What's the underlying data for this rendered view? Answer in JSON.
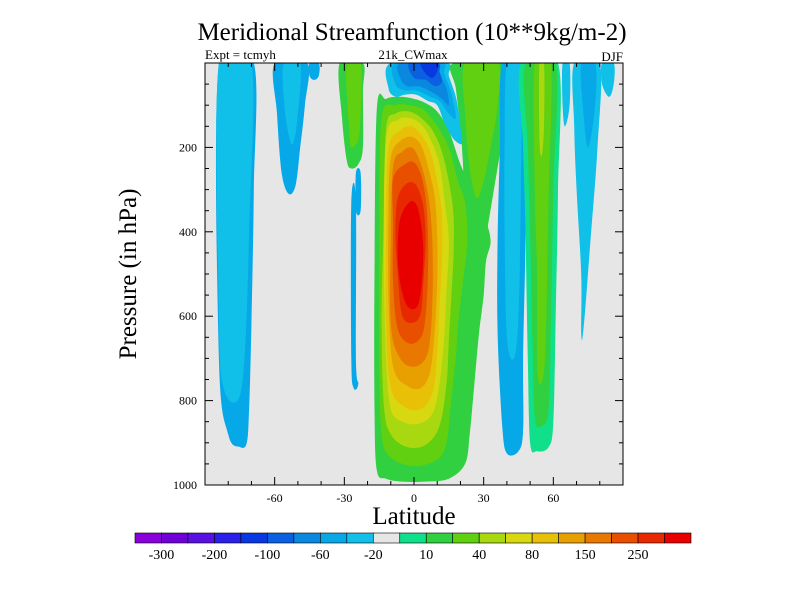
{
  "chart_data": {
    "type": "contour",
    "title": "Meridional Streamfunction (10**9kg/m-2)",
    "subtitle_left": "Expt = tcmyh",
    "subtitle_center": "21k_CWmax",
    "subtitle_right": "DJF",
    "xlabel": "Latitude",
    "ylabel": "Pressure (in hPa)",
    "xlim": [
      -90,
      90
    ],
    "ylim": [
      1000,
      0
    ],
    "x_ticks": [
      {
        "value": -60,
        "label": "-60"
      },
      {
        "value": -30,
        "label": "-30"
      },
      {
        "value": 0,
        "label": "0"
      },
      {
        "value": 30,
        "label": "30"
      },
      {
        "value": 60,
        "label": "60"
      }
    ],
    "y_ticks": [
      {
        "value": 200,
        "label": "200"
      },
      {
        "value": 400,
        "label": "400"
      },
      {
        "value": 600,
        "label": "600"
      },
      {
        "value": 800,
        "label": "800"
      },
      {
        "value": 1000,
        "label": "1000"
      }
    ],
    "levels": [
      -300,
      -250,
      -200,
      -150,
      -100,
      -80,
      -60,
      -40,
      -20,
      -10,
      10,
      20,
      40,
      60,
      80,
      100,
      150,
      200,
      250,
      300
    ],
    "colorbar_colors": [
      "#8a00d8",
      "#7000d8",
      "#5a10e0",
      "#2a20e8",
      "#0838e0",
      "#0a60e0",
      "#0a88e0",
      "#06a8e8",
      "#10c0e8",
      "#e6e6e6",
      "#10e08a",
      "#30d040",
      "#60d010",
      "#a8d810",
      "#d8d810",
      "#e8c008",
      "#e8a000",
      "#e87800",
      "#e85000",
      "#e82800",
      "#e80000"
    ],
    "colorbar_labels": [
      {
        "index": 1,
        "label": "-300"
      },
      {
        "index": 3,
        "label": "-200"
      },
      {
        "index": 5,
        "label": "-100"
      },
      {
        "index": 7,
        "label": "-60"
      },
      {
        "index": 9,
        "label": "-20"
      },
      {
        "index": 11,
        "label": "10"
      },
      {
        "index": 13,
        "label": "40"
      },
      {
        "index": 15,
        "label": "80"
      },
      {
        "index": 17,
        "label": "150"
      },
      {
        "index": 19,
        "label": "250"
      }
    ],
    "background_color": "#e6e6e6",
    "features": [
      {
        "name": "main-cell-positive",
        "lat_range": [
          -15,
          15
        ],
        "pressure_range": [
          90,
          990
        ],
        "peak_value": 300,
        "peak_lat": -2,
        "peak_pressure": 500
      },
      {
        "name": "north-positive-band",
        "lat_range": [
          5,
          45
        ],
        "pressure_range": [
          0,
          430
        ],
        "peak_value": 30
      },
      {
        "name": "nh-negative-upper",
        "lat_range": [
          -12,
          18
        ],
        "pressure_range": [
          0,
          80
        ],
        "peak_value": -150
      },
      {
        "name": "sh-negative-cell",
        "lat_range": [
          -84,
          -69
        ],
        "pressure_range": [
          0,
          910
        ],
        "peak_value": -20
      },
      {
        "name": "nh-negative-cell",
        "lat_range": [
          37,
          48
        ],
        "pressure_range": [
          0,
          930
        ],
        "peak_value": -20
      },
      {
        "name": "ferrel-positive-cell",
        "lat_range": [
          46,
          62
        ],
        "pressure_range": [
          0,
          930
        ],
        "peak_value": 60
      }
    ]
  }
}
